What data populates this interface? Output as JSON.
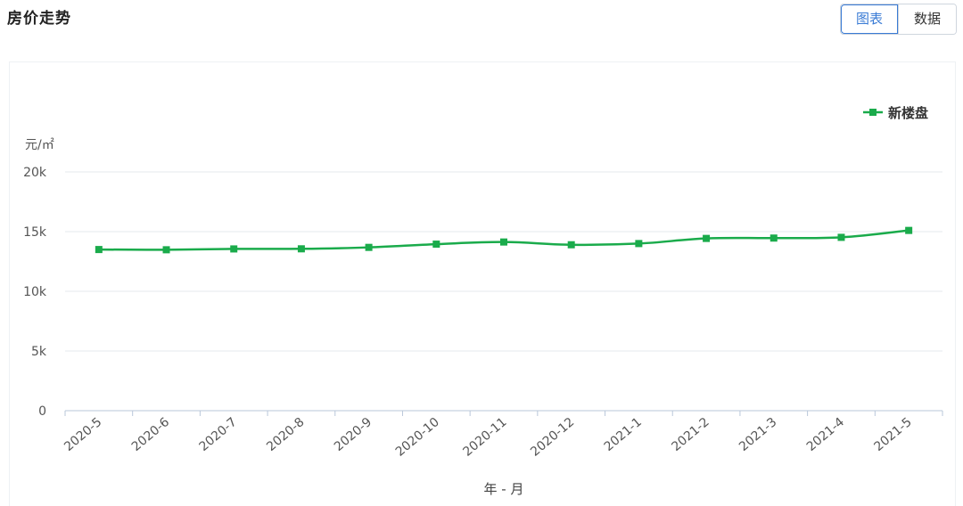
{
  "header": {
    "title": "房价走势",
    "tabs": [
      {
        "label": "图表",
        "active": true
      },
      {
        "label": "数据",
        "active": false
      }
    ]
  },
  "chart_data": {
    "type": "line",
    "ylabel": "元/㎡",
    "xlabel": "年 - 月",
    "ylim": [
      0,
      20000
    ],
    "yticks": [
      {
        "value": 0,
        "label": "0"
      },
      {
        "value": 5000,
        "label": "5k"
      },
      {
        "value": 10000,
        "label": "10k"
      },
      {
        "value": 15000,
        "label": "15k"
      },
      {
        "value": 20000,
        "label": "20k"
      }
    ],
    "categories": [
      "2020-5",
      "2020-6",
      "2020-7",
      "2020-8",
      "2020-9",
      "2020-10",
      "2020-11",
      "2020-12",
      "2021-1",
      "2021-2",
      "2021-3",
      "2021-4",
      "2021-5"
    ],
    "series": [
      {
        "name": "新楼盘",
        "color": "#1aab4b",
        "values": [
          13500,
          13480,
          13550,
          13560,
          13680,
          13950,
          14130,
          13900,
          14000,
          14430,
          14460,
          14520,
          15100
        ]
      }
    ],
    "grid": true,
    "legend_position": "top-right"
  }
}
